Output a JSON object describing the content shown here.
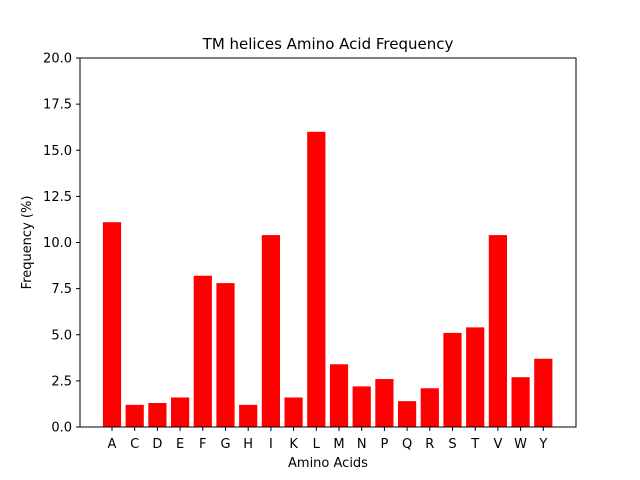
{
  "chart_data": {
    "type": "bar",
    "title": "TM helices Amino Acid Frequency",
    "xlabel": "Amino Acids",
    "ylabel": "Frequency (%)",
    "ylim": [
      0,
      20
    ],
    "yticks": [
      "0.0",
      "2.5",
      "5.0",
      "7.5",
      "10.0",
      "12.5",
      "15.0",
      "17.5",
      "20.0"
    ],
    "grid": false,
    "bar_color": "#ff0000",
    "categories": [
      "A",
      "C",
      "D",
      "E",
      "F",
      "G",
      "H",
      "I",
      "K",
      "L",
      "M",
      "N",
      "P",
      "Q",
      "R",
      "S",
      "T",
      "V",
      "W",
      "Y"
    ],
    "values": [
      11.1,
      1.2,
      1.3,
      1.6,
      8.2,
      7.8,
      1.2,
      10.4,
      1.6,
      16.0,
      3.4,
      2.2,
      2.6,
      1.4,
      2.1,
      5.1,
      5.4,
      10.4,
      2.7,
      3.7
    ]
  }
}
